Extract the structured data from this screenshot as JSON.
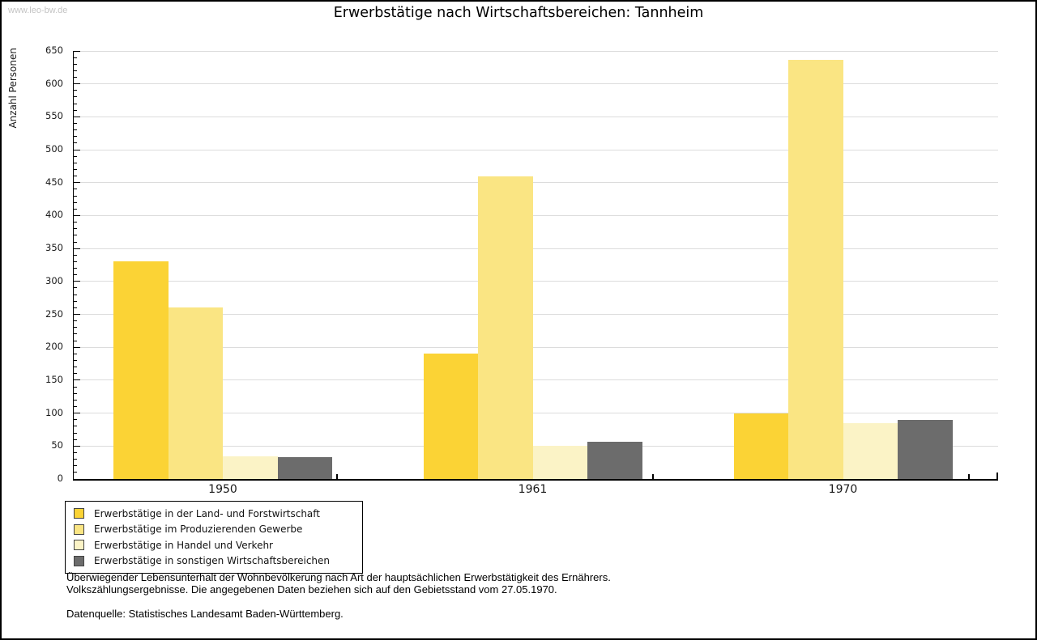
{
  "watermark": "www.leo-bw.de",
  "title": "Erwerbstätige nach Wirtschaftsbereichen: Tannheim",
  "chart_data": {
    "type": "bar",
    "categories": [
      "1950",
      "1961",
      "1970"
    ],
    "series": [
      {
        "name": "Erwerbstätige in der Land- und Forstwirtschaft",
        "color": "#FBD335",
        "values": [
          330,
          190,
          100
        ]
      },
      {
        "name": "Erwerbstätige im Produzierenden Gewerbe",
        "color": "#FAE583",
        "values": [
          260,
          460,
          637
        ]
      },
      {
        "name": "Erwerbstätige in Handel und Verkehr",
        "color": "#FBF3C6",
        "values": [
          34,
          50,
          85
        ]
      },
      {
        "name": "Erwerbstätige in sonstigen Wirtschaftsbereichen",
        "color": "#6C6C6C",
        "values": [
          33,
          57,
          90
        ]
      }
    ],
    "title": "Erwerbstätige nach Wirtschaftsbereichen: Tannheim",
    "xlabel": "",
    "ylabel": "Anzahl Personen",
    "ylim": [
      0,
      650
    ],
    "ytick_step": 50,
    "yminor_step": 10,
    "grid": true,
    "legend_position": "bottom-left",
    "gridline_color": "#DCDCDC"
  },
  "notes": {
    "line1": "Überwiegender Lebensunterhalt der Wohnbevölkerung nach Art der hauptsächlichen Erwerbstätigkeit des Ernährers.",
    "line2": "Volkszählungsergebnisse. Die angegebenen Daten beziehen sich auf den Gebietsstand vom 27.05.1970.",
    "source": "Datenquelle: Statistisches Landesamt Baden-Württemberg."
  }
}
